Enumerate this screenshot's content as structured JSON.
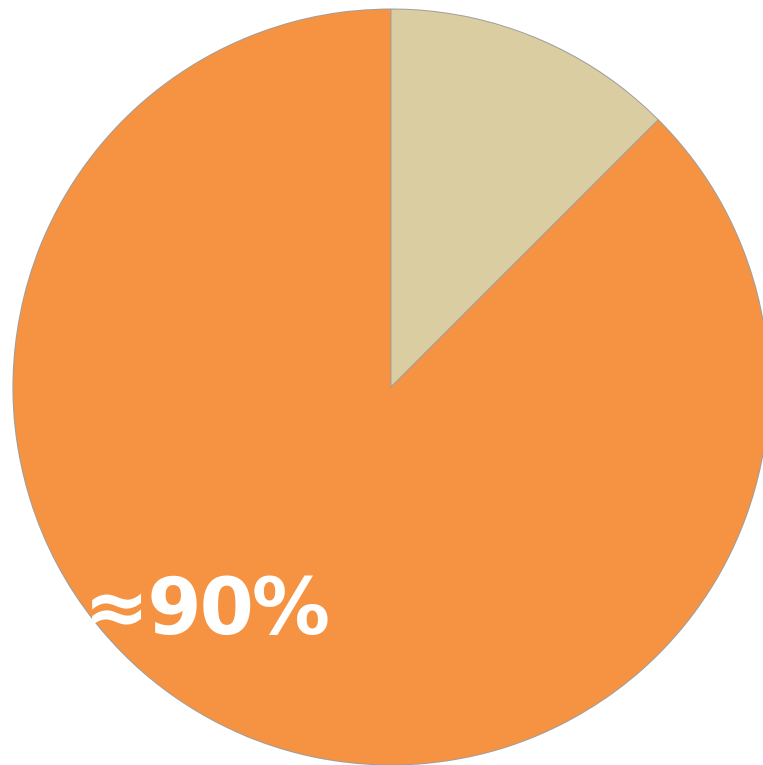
{
  "chart_data": {
    "type": "pie",
    "slices": [
      {
        "value": 87.5,
        "color": "#F59342",
        "label": "≈90%"
      },
      {
        "value": 12.5,
        "color": "#DACDA2",
        "label": ""
      }
    ],
    "start_angle_deg": 0,
    "direction": "counterclockwise-from-top"
  },
  "colors": {
    "background": "#FFFFFF",
    "slice_border": "#9E9E9E",
    "label_text": "#FFFFFF"
  }
}
